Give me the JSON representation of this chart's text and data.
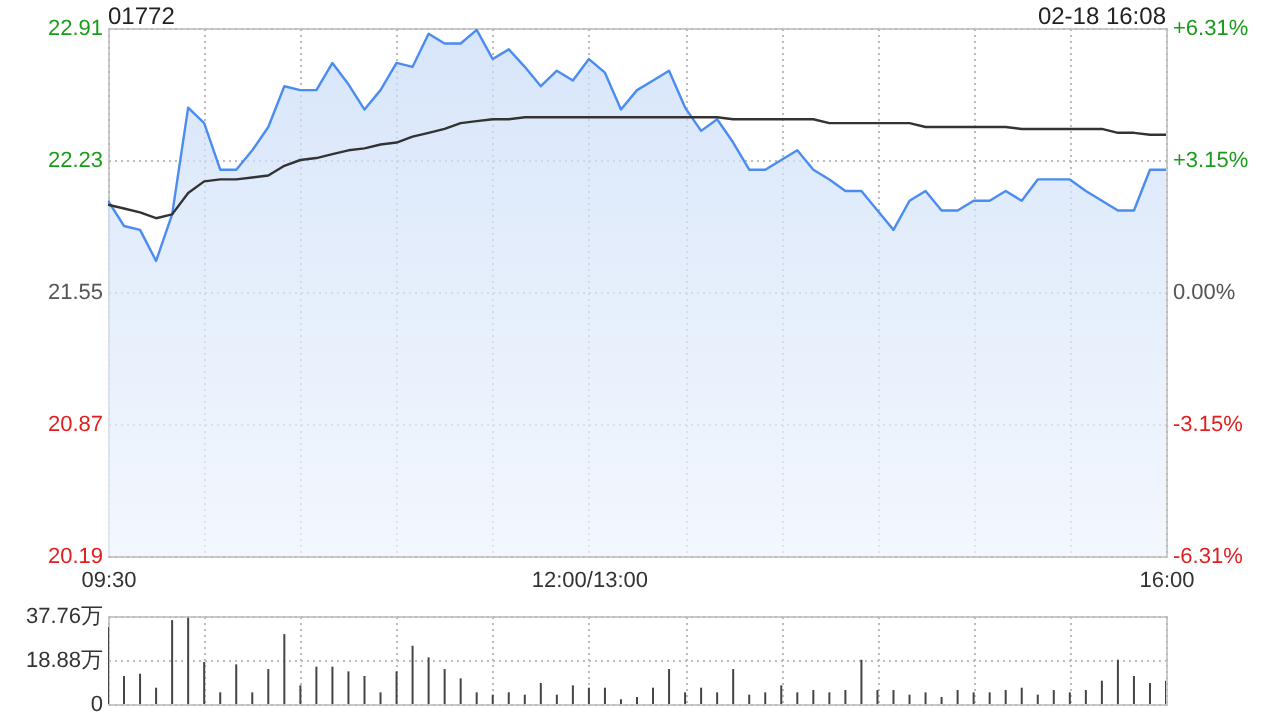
{
  "chart_data": [
    {
      "type": "area",
      "title": "01772",
      "annotations": [
        "02-18 16:08"
      ],
      "categories": [
        "09:30",
        null,
        null,
        null,
        null,
        null,
        null,
        null,
        null,
        null,
        null,
        null,
        null,
        null,
        null,
        null,
        null,
        null,
        null,
        null,
        null,
        null,
        null,
        null,
        null,
        null,
        null,
        null,
        null,
        null,
        "12:00/13:00",
        null,
        null,
        null,
        null,
        null,
        null,
        null,
        null,
        null,
        null,
        null,
        null,
        null,
        null,
        null,
        null,
        null,
        null,
        null,
        null,
        null,
        null,
        null,
        null,
        null,
        null,
        null,
        null,
        null,
        null,
        null,
        null,
        null,
        null,
        null,
        "16:00"
      ],
      "ylim": [
        20.19,
        22.91
      ],
      "yticks": [
        20.19,
        20.87,
        21.55,
        22.23,
        22.91
      ],
      "y2lim": [
        -6.31,
        6.31
      ],
      "y2ticks": [
        {
          "value": -6.31,
          "label": "-6.31%"
        },
        {
          "value": -3.15,
          "label": "-3.15%"
        },
        {
          "value": 0,
          "label": "0.00%"
        },
        {
          "value": 3.15,
          "label": "+3.15%"
        },
        {
          "value": 6.31,
          "label": "+6.31%"
        }
      ],
      "grid": true,
      "series": [
        {
          "color": "#4a8cf0",
          "values": [
            22.02,
            21.89,
            21.87,
            21.71,
            21.95,
            22.5,
            22.42,
            22.18,
            22.18,
            22.28,
            22.4,
            22.61,
            22.59,
            22.59,
            22.73,
            22.62,
            22.49,
            22.59,
            22.73,
            22.71,
            22.88,
            22.83,
            22.83,
            22.9,
            22.75,
            22.8,
            22.71,
            22.61,
            22.69,
            22.64,
            22.75,
            22.68,
            22.49,
            22.59,
            22.64,
            22.69,
            22.5,
            22.38,
            22.44,
            22.32,
            22.18,
            22.18,
            22.23,
            22.28,
            22.18,
            22.13,
            22.07,
            22.07,
            21.97,
            21.87,
            22.02,
            22.07,
            21.97,
            21.97,
            22.02,
            22.02,
            22.07,
            22.02,
            22.13,
            22.13,
            22.13,
            22.07,
            22.02,
            21.97,
            21.97,
            22.18,
            22.18
          ]
        },
        {
          "type": "line",
          "color": "#333333",
          "values": [
            22.0,
            21.98,
            21.96,
            21.93,
            21.95,
            22.06,
            22.12,
            22.13,
            22.13,
            22.14,
            22.15,
            22.2,
            22.23,
            22.24,
            22.26,
            22.28,
            22.29,
            22.31,
            22.32,
            22.35,
            22.37,
            22.39,
            22.42,
            22.43,
            22.44,
            22.44,
            22.45,
            22.45,
            22.45,
            22.45,
            22.45,
            22.45,
            22.45,
            22.45,
            22.45,
            22.45,
            22.45,
            22.45,
            22.45,
            22.44,
            22.44,
            22.44,
            22.44,
            22.44,
            22.44,
            22.42,
            22.42,
            22.42,
            22.42,
            22.42,
            22.42,
            22.4,
            22.4,
            22.4,
            22.4,
            22.4,
            22.4,
            22.39,
            22.39,
            22.39,
            22.39,
            22.39,
            22.39,
            22.37,
            22.37,
            22.36,
            22.36
          ]
        }
      ]
    },
    {
      "type": "bar",
      "tick_labels": "y",
      "categories": [
        null,
        null,
        null,
        null,
        null,
        null,
        null,
        null,
        null,
        null,
        null,
        null,
        null,
        null,
        null,
        null,
        null,
        null,
        null,
        null,
        null,
        null,
        null,
        null,
        null,
        null,
        null,
        null,
        null,
        null,
        null,
        null,
        null,
        null,
        null,
        null,
        null,
        null,
        null,
        null,
        null,
        null,
        null,
        null,
        null,
        null,
        null,
        null,
        null,
        null,
        null,
        null,
        null,
        null,
        null,
        null,
        null,
        null,
        null,
        null,
        null,
        null,
        null,
        null,
        null,
        null,
        null
      ],
      "ylim": [
        0,
        37.76
      ],
      "yticks": [
        0,
        {
          "value": 18.88,
          "label": "18.88万"
        },
        {
          "value": 37.76,
          "label": "37.76万"
        }
      ],
      "grid": true,
      "series": [
        {
          "color": "#444444",
          "values": [
            33,
            12,
            13,
            7,
            36,
            37,
            18,
            5,
            17,
            5,
            15,
            30,
            8,
            16,
            16,
            14,
            12,
            5,
            14,
            25,
            20,
            15,
            11,
            5,
            4,
            5,
            4,
            9,
            4,
            8,
            7,
            7,
            2,
            3,
            7,
            15,
            5,
            7,
            5,
            15,
            4,
            5,
            8,
            5,
            6,
            5,
            6,
            19,
            6,
            6,
            4,
            5,
            3,
            6,
            5,
            5,
            6,
            7,
            4,
            6,
            5,
            6,
            10,
            19,
            12,
            9,
            10
          ]
        }
      ]
    }
  ]
}
